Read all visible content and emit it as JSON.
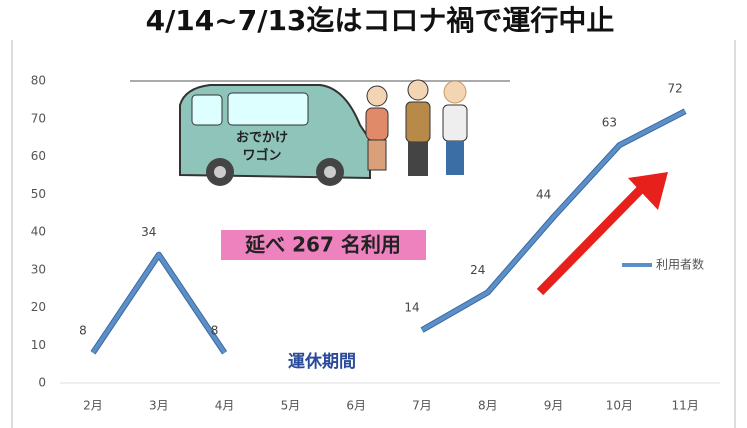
{
  "chart_data": {
    "type": "line",
    "title": "4/14~7/13迄はコロナ禍で運行中止",
    "annotations": [
      "延べ 267 名利用",
      "運休期間"
    ],
    "categories": [
      "2月",
      "3月",
      "4月",
      "5月",
      "6月",
      "7月",
      "8月",
      "9月",
      "10月",
      "11月"
    ],
    "series": [
      {
        "name": "利用者数",
        "color": "#5b8fc9",
        "values": [
          8,
          34,
          8,
          null,
          null,
          14,
          24,
          44,
          63,
          72
        ]
      }
    ],
    "ylim": [
      0,
      80
    ],
    "yticks": [
      0,
      10,
      20,
      30,
      40,
      50,
      60,
      70,
      80
    ],
    "grid": false,
    "legend": "right"
  }
}
